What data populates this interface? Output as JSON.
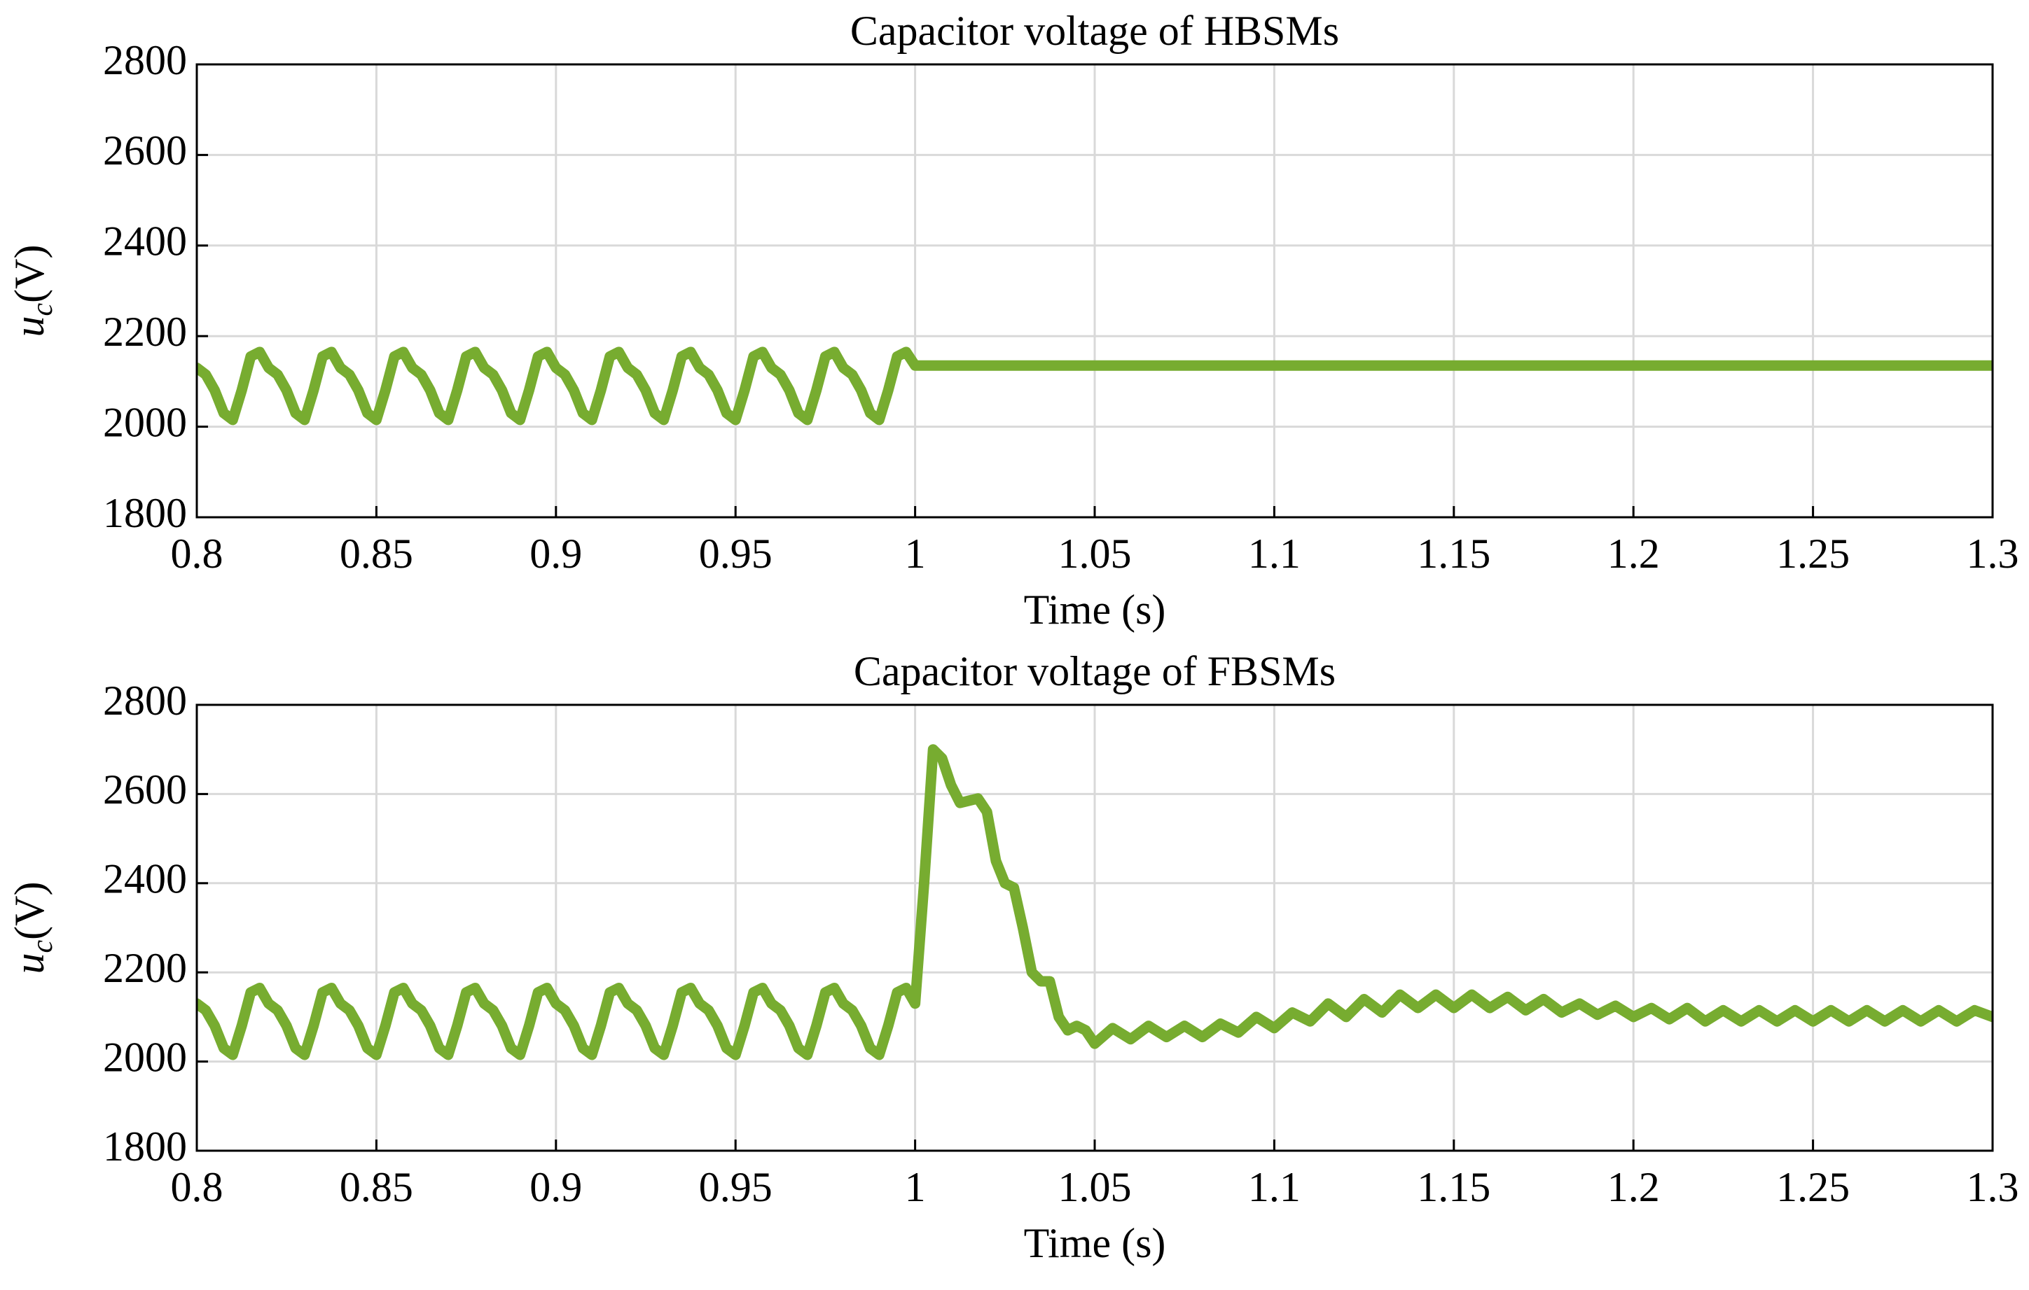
{
  "chart_data": [
    {
      "type": "line",
      "title": "Capacitor voltage of HBSMs",
      "xlabel": "Time (s)",
      "ylabel": {
        "symbol": "u",
        "subscript": "c",
        "unit": "(V)"
      },
      "grid": true,
      "xlim": [
        0.8,
        1.3
      ],
      "xticks": [
        0.8,
        0.85,
        0.9,
        0.95,
        1,
        1.05,
        1.1,
        1.15,
        1.2,
        1.25,
        1.3
      ],
      "ylim": [
        1800,
        2800
      ],
      "yticks": [
        1800,
        2000,
        2200,
        2400,
        2600,
        2800
      ],
      "series": [
        {
          "color": "#77ac30",
          "x": [
            0.8,
            0.8025,
            0.805,
            0.8075,
            0.81,
            0.8125,
            0.815,
            0.8175,
            0.82,
            0.8225,
            0.825,
            0.8275,
            0.83,
            0.8325,
            0.835,
            0.8375,
            0.84,
            0.8425,
            0.845,
            0.8475,
            0.85,
            0.8525,
            0.855,
            0.8575,
            0.86,
            0.8625,
            0.865,
            0.8675,
            0.87,
            0.8725,
            0.875,
            0.8775,
            0.88,
            0.8825,
            0.885,
            0.8875,
            0.89,
            0.8925,
            0.895,
            0.8975,
            0.9,
            0.9025,
            0.905,
            0.9075,
            0.91,
            0.9125,
            0.915,
            0.9175,
            0.92,
            0.9225,
            0.925,
            0.9275,
            0.93,
            0.9325,
            0.935,
            0.9375,
            0.94,
            0.9425,
            0.945,
            0.9475,
            0.95,
            0.9525,
            0.955,
            0.9575,
            0.96,
            0.9625,
            0.965,
            0.9675,
            0.97,
            0.9725,
            0.975,
            0.9775,
            0.98,
            0.9825,
            0.985,
            0.9875,
            0.99,
            0.9925,
            0.995,
            0.9975,
            1.0,
            1.3
          ],
          "values": [
            2130,
            2115,
            2080,
            2030,
            2015,
            2080,
            2155,
            2165,
            2130,
            2115,
            2080,
            2030,
            2015,
            2080,
            2155,
            2165,
            2130,
            2115,
            2080,
            2030,
            2015,
            2080,
            2155,
            2165,
            2130,
            2115,
            2080,
            2030,
            2015,
            2080,
            2155,
            2165,
            2130,
            2115,
            2080,
            2030,
            2015,
            2080,
            2155,
            2165,
            2130,
            2115,
            2080,
            2030,
            2015,
            2080,
            2155,
            2165,
            2130,
            2115,
            2080,
            2030,
            2015,
            2080,
            2155,
            2165,
            2130,
            2115,
            2080,
            2030,
            2015,
            2080,
            2155,
            2165,
            2130,
            2115,
            2080,
            2030,
            2015,
            2080,
            2155,
            2165,
            2130,
            2115,
            2080,
            2030,
            2015,
            2080,
            2155,
            2165,
            2135,
            2135
          ]
        }
      ]
    },
    {
      "type": "line",
      "title": "Capacitor voltage of FBSMs",
      "xlabel": "Time (s)",
      "ylabel": {
        "symbol": "u",
        "subscript": "c",
        "unit": "(V)"
      },
      "grid": true,
      "xlim": [
        0.8,
        1.3
      ],
      "xticks": [
        0.8,
        0.85,
        0.9,
        0.95,
        1,
        1.05,
        1.1,
        1.15,
        1.2,
        1.25,
        1.3
      ],
      "ylim": [
        1800,
        2800
      ],
      "yticks": [
        1800,
        2000,
        2200,
        2400,
        2600,
        2800
      ],
      "series": [
        {
          "color": "#77ac30",
          "x": [
            0.8,
            0.8025,
            0.805,
            0.8075,
            0.81,
            0.8125,
            0.815,
            0.8175,
            0.82,
            0.8225,
            0.825,
            0.8275,
            0.83,
            0.8325,
            0.835,
            0.8375,
            0.84,
            0.8425,
            0.845,
            0.8475,
            0.85,
            0.8525,
            0.855,
            0.8575,
            0.86,
            0.8625,
            0.865,
            0.8675,
            0.87,
            0.8725,
            0.875,
            0.8775,
            0.88,
            0.8825,
            0.885,
            0.8875,
            0.89,
            0.8925,
            0.895,
            0.8975,
            0.9,
            0.9025,
            0.905,
            0.9075,
            0.91,
            0.9125,
            0.915,
            0.9175,
            0.92,
            0.9225,
            0.925,
            0.9275,
            0.93,
            0.9325,
            0.935,
            0.9375,
            0.94,
            0.9425,
            0.945,
            0.9475,
            0.95,
            0.9525,
            0.955,
            0.9575,
            0.96,
            0.9625,
            0.965,
            0.9675,
            0.97,
            0.9725,
            0.975,
            0.9775,
            0.98,
            0.9825,
            0.985,
            0.9875,
            0.99,
            0.9925,
            0.995,
            0.9975,
            1.0,
            1.0025,
            1.005,
            1.0075,
            1.01,
            1.0125,
            1.015,
            1.0175,
            1.02,
            1.0225,
            1.025,
            1.0275,
            1.03,
            1.0325,
            1.035,
            1.0375,
            1.04,
            1.0425,
            1.045,
            1.0475,
            1.05,
            1.055,
            1.06,
            1.065,
            1.07,
            1.075,
            1.08,
            1.085,
            1.09,
            1.095,
            1.1,
            1.105,
            1.11,
            1.115,
            1.12,
            1.125,
            1.13,
            1.135,
            1.14,
            1.145,
            1.15,
            1.155,
            1.16,
            1.165,
            1.17,
            1.175,
            1.18,
            1.185,
            1.19,
            1.195,
            1.2,
            1.205,
            1.21,
            1.215,
            1.22,
            1.225,
            1.23,
            1.235,
            1.24,
            1.245,
            1.25,
            1.255,
            1.26,
            1.265,
            1.27,
            1.275,
            1.28,
            1.285,
            1.29,
            1.295,
            1.3
          ],
          "values": [
            2130,
            2115,
            2080,
            2030,
            2015,
            2080,
            2155,
            2165,
            2130,
            2115,
            2080,
            2030,
            2015,
            2080,
            2155,
            2165,
            2130,
            2115,
            2080,
            2030,
            2015,
            2080,
            2155,
            2165,
            2130,
            2115,
            2080,
            2030,
            2015,
            2080,
            2155,
            2165,
            2130,
            2115,
            2080,
            2030,
            2015,
            2080,
            2155,
            2165,
            2130,
            2115,
            2080,
            2030,
            2015,
            2080,
            2155,
            2165,
            2130,
            2115,
            2080,
            2030,
            2015,
            2080,
            2155,
            2165,
            2130,
            2115,
            2080,
            2030,
            2015,
            2080,
            2155,
            2165,
            2130,
            2115,
            2080,
            2030,
            2015,
            2080,
            2155,
            2165,
            2130,
            2115,
            2080,
            2030,
            2015,
            2080,
            2155,
            2165,
            2130,
            2400,
            2700,
            2680,
            2620,
            2580,
            2585,
            2590,
            2560,
            2450,
            2400,
            2390,
            2300,
            2200,
            2180,
            2180,
            2100,
            2070,
            2080,
            2070,
            2040,
            2075,
            2050,
            2080,
            2055,
            2080,
            2055,
            2085,
            2065,
            2100,
            2075,
            2110,
            2090,
            2130,
            2100,
            2140,
            2110,
            2150,
            2120,
            2150,
            2120,
            2150,
            2120,
            2145,
            2115,
            2140,
            2110,
            2130,
            2105,
            2125,
            2100,
            2120,
            2095,
            2120,
            2090,
            2115,
            2090,
            2115,
            2090,
            2115,
            2090,
            2115,
            2090,
            2115,
            2090,
            2115,
            2090,
            2115,
            2090,
            2115,
            2100
          ]
        }
      ]
    }
  ]
}
